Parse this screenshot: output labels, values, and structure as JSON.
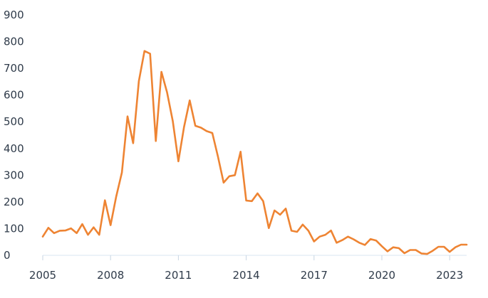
{
  "chart_data": {
    "type": "line",
    "title": "",
    "xlabel": "",
    "ylabel": "",
    "xlim": [
      2005,
      2023.75
    ],
    "ylim": [
      0,
      900
    ],
    "x_ticks": [
      2005,
      2008,
      2011,
      2014,
      2017,
      2020,
      2023
    ],
    "y_ticks": [
      0,
      100,
      200,
      300,
      400,
      500,
      600,
      700,
      800,
      900
    ],
    "grid": false,
    "legend": "none",
    "series": [
      {
        "color": "#ee8433",
        "x": [
          2005.0,
          2005.25,
          2005.5,
          2005.75,
          2006.0,
          2006.25,
          2006.5,
          2006.75,
          2007.0,
          2007.25,
          2007.5,
          2007.75,
          2008.0,
          2008.25,
          2008.5,
          2008.75,
          2009.0,
          2009.25,
          2009.5,
          2009.75,
          2010.0,
          2010.25,
          2010.5,
          2010.75,
          2011.0,
          2011.25,
          2011.5,
          2011.75,
          2012.0,
          2012.25,
          2012.5,
          2012.75,
          2013.0,
          2013.25,
          2013.5,
          2013.75,
          2014.0,
          2014.25,
          2014.5,
          2014.75,
          2015.0,
          2015.25,
          2015.5,
          2015.75,
          2016.0,
          2016.25,
          2016.5,
          2016.75,
          2017.0,
          2017.25,
          2017.5,
          2017.75,
          2018.0,
          2018.25,
          2018.5,
          2018.75,
          2019.0,
          2019.25,
          2019.5,
          2019.75,
          2020.0,
          2020.25,
          2020.5,
          2020.75,
          2021.0,
          2021.25,
          2021.5,
          2021.75,
          2022.0,
          2022.25,
          2022.5,
          2022.75,
          2023.0,
          2023.25,
          2023.5,
          2023.75
        ],
        "y": [
          70,
          103,
          83,
          92,
          93,
          101,
          83,
          117,
          77,
          105,
          77,
          206,
          113,
          220,
          310,
          520,
          420,
          652,
          765,
          755,
          428,
          687,
          610,
          503,
          352,
          480,
          580,
          485,
          478,
          465,
          458,
          370,
          272,
          296,
          300,
          388,
          205,
          203,
          232,
          203,
          102,
          168,
          152,
          175,
          92,
          88,
          115,
          92,
          52,
          70,
          77,
          93,
          47,
          57,
          70,
          60,
          47,
          39,
          61,
          55,
          34,
          15,
          30,
          27,
          8,
          20,
          20,
          7,
          5,
          17,
          32,
          32,
          13,
          30,
          40,
          40
        ]
      }
    ]
  }
}
